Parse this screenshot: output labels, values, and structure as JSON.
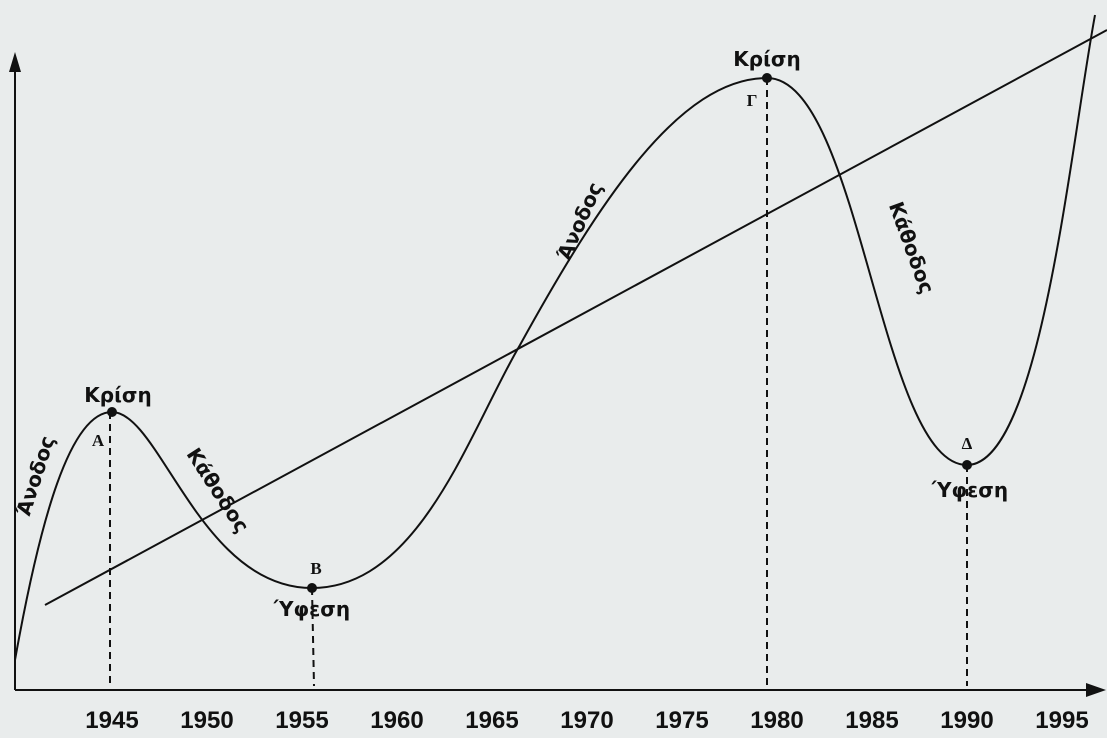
{
  "axis": {
    "ticks": [
      "1945",
      "1950",
      "1955",
      "1960",
      "1965",
      "1970",
      "1975",
      "1980",
      "1985",
      "1990",
      "1995"
    ]
  },
  "points": [
    {
      "letter": "Α",
      "label": "Κρίση"
    },
    {
      "letter": "Β",
      "label": "Ύφεση"
    },
    {
      "letter": "Γ",
      "label": "Κρίση"
    },
    {
      "letter": "Δ",
      "label": "Ύφεση"
    }
  ],
  "phases": [
    "Άνοδος",
    "Κάθοδος",
    "Άνοδος",
    "Κάθοδος"
  ]
}
